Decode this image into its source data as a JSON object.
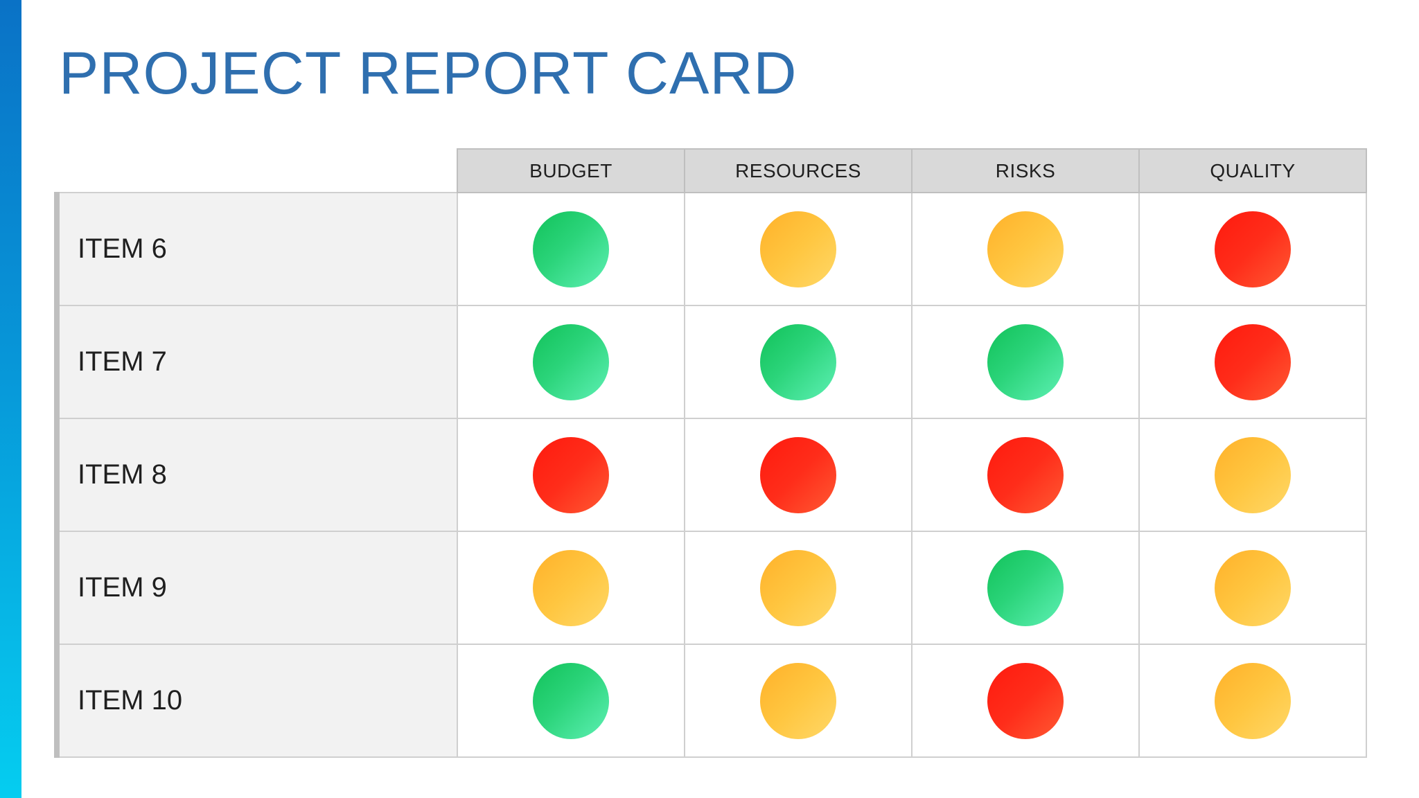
{
  "title": "PROJECT REPORT CARD",
  "colors": {
    "accent_bar_top": "#0a72c6",
    "accent_bar_bottom": "#05cdf0",
    "title": "#2f6faf",
    "green": "#22cc6a",
    "yellow": "#ffc23d",
    "red": "#ff2a1a"
  },
  "columns": [
    "BUDGET",
    "RESOURCES",
    "RISKS",
    "QUALITY"
  ],
  "rows": [
    {
      "label": "ITEM 6",
      "status": [
        "green",
        "yellow",
        "yellow",
        "red"
      ]
    },
    {
      "label": "ITEM 7",
      "status": [
        "green",
        "green",
        "green",
        "red"
      ]
    },
    {
      "label": "ITEM 8",
      "status": [
        "red",
        "red",
        "red",
        "yellow"
      ]
    },
    {
      "label": "ITEM 9",
      "status": [
        "yellow",
        "yellow",
        "green",
        "yellow"
      ]
    },
    {
      "label": "ITEM 10",
      "status": [
        "green",
        "yellow",
        "red",
        "yellow"
      ]
    }
  ]
}
